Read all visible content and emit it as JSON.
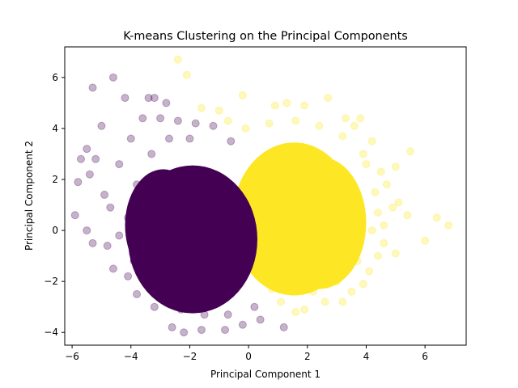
{
  "chart_data": {
    "type": "scatter",
    "title": "K-means Clustering on the Principal Components",
    "xlabel": "Principal Component 1",
    "ylabel": "Principal Component 2",
    "xlim": [
      -6.25,
      7.4
    ],
    "ylim": [
      -4.5,
      7.2
    ],
    "xticks": [
      -6,
      -4,
      -2,
      0,
      2,
      4,
      6
    ],
    "yticks": [
      -4,
      -2,
      0,
      2,
      4,
      6
    ],
    "grid": false,
    "legend": false,
    "point_alpha": 0.3,
    "series": [
      {
        "color": "#440154",
        "points": [
          [
            -5.3,
            5.6
          ],
          [
            -4.6,
            6.0
          ],
          [
            -4.2,
            5.2
          ],
          [
            -3.4,
            5.2
          ],
          [
            -3.2,
            5.2
          ],
          [
            -2.8,
            5.0
          ],
          [
            -5.0,
            4.1
          ],
          [
            -5.5,
            3.2
          ],
          [
            -5.7,
            2.8
          ],
          [
            -5.8,
            1.9
          ],
          [
            -5.2,
            2.8
          ],
          [
            -5.4,
            2.2
          ],
          [
            -5.9,
            0.6
          ],
          [
            -5.5,
            0.0
          ],
          [
            -5.3,
            -0.5
          ],
          [
            -4.8,
            -0.6
          ],
          [
            -4.6,
            -1.5
          ],
          [
            -4.1,
            -1.8
          ],
          [
            -3.8,
            -2.5
          ],
          [
            -3.2,
            -3.0
          ],
          [
            -2.6,
            -3.8
          ],
          [
            -2.2,
            -4.0
          ],
          [
            -1.6,
            -3.9
          ],
          [
            -0.8,
            -3.9
          ],
          [
            -0.2,
            -3.7
          ],
          [
            0.4,
            -3.5
          ],
          [
            1.2,
            -3.8
          ],
          [
            -4.9,
            1.4
          ],
          [
            -4.4,
            2.6
          ],
          [
            -4.0,
            3.6
          ],
          [
            -3.6,
            4.4
          ],
          [
            -3.0,
            4.4
          ],
          [
            -2.4,
            4.3
          ],
          [
            -1.8,
            4.2
          ],
          [
            -1.2,
            4.1
          ],
          [
            -0.6,
            3.5
          ],
          [
            -4.7,
            0.9
          ],
          [
            -4.4,
            -0.2
          ],
          [
            -4.1,
            0.5
          ],
          [
            -3.9,
            -1.2
          ],
          [
            -3.5,
            -2.0
          ],
          [
            -2.9,
            -2.6
          ],
          [
            -2.3,
            -3.1
          ],
          [
            -1.5,
            -3.3
          ],
          [
            -0.7,
            -3.3
          ],
          [
            0.2,
            -3.0
          ],
          [
            -3.8,
            1.8
          ],
          [
            -3.3,
            3.0
          ],
          [
            -2.7,
            3.6
          ],
          [
            -2.0,
            3.6
          ]
        ]
      },
      {
        "color": "#fde725",
        "points": [
          [
            -2.4,
            6.7
          ],
          [
            -2.1,
            6.1
          ],
          [
            -0.2,
            5.3
          ],
          [
            1.3,
            5.0
          ],
          [
            2.7,
            5.2
          ],
          [
            1.9,
            4.9
          ],
          [
            0.9,
            4.9
          ],
          [
            -1.6,
            4.8
          ],
          [
            -1.0,
            4.7
          ],
          [
            3.3,
            4.4
          ],
          [
            3.8,
            4.4
          ],
          [
            3.6,
            4.1
          ],
          [
            4.2,
            3.5
          ],
          [
            4.0,
            2.6
          ],
          [
            4.5,
            2.3
          ],
          [
            5.0,
            2.5
          ],
          [
            5.5,
            3.1
          ],
          [
            4.7,
            1.8
          ],
          [
            4.9,
            0.9
          ],
          [
            5.1,
            1.1
          ],
          [
            5.4,
            0.6
          ],
          [
            4.4,
            0.7
          ],
          [
            4.6,
            0.2
          ],
          [
            6.4,
            0.5
          ],
          [
            6.8,
            0.2
          ],
          [
            6.0,
            -0.4
          ],
          [
            5.0,
            -0.9
          ],
          [
            4.4,
            -1.0
          ],
          [
            4.1,
            -1.6
          ],
          [
            3.9,
            -2.1
          ],
          [
            3.5,
            -2.4
          ],
          [
            3.2,
            -2.8
          ],
          [
            2.6,
            -2.8
          ],
          [
            1.9,
            -3.1
          ],
          [
            1.6,
            -3.2
          ],
          [
            1.1,
            -2.8
          ],
          [
            0.8,
            -2.3
          ],
          [
            4.3,
            1.5
          ],
          [
            3.9,
            3.0
          ],
          [
            3.2,
            3.7
          ],
          [
            2.4,
            4.1
          ],
          [
            1.6,
            4.3
          ],
          [
            0.7,
            4.2
          ],
          [
            -0.1,
            4.0
          ],
          [
            -0.7,
            4.3
          ],
          [
            4.6,
            -0.5
          ],
          [
            4.2,
            0.0
          ],
          [
            3.7,
            -1.2
          ],
          [
            3.0,
            -2.0
          ],
          [
            2.2,
            -2.4
          ]
        ]
      }
    ]
  }
}
